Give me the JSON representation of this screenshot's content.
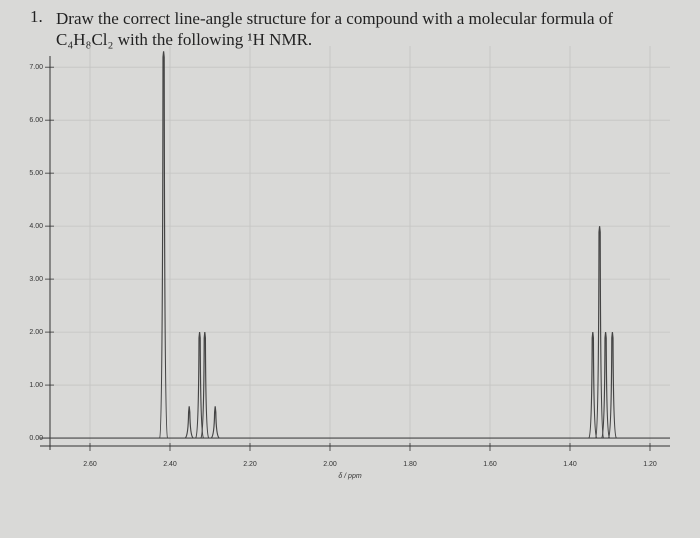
{
  "question": {
    "number": "1.",
    "line1": "Draw the correct line-angle structure for a compound with a molecular formula of",
    "line2": "C₄H₈Cl₂ with the following ¹H NMR."
  },
  "chart_data": {
    "type": "spectrum",
    "x_label": "δ / ppm",
    "color": "#444444",
    "grid": true,
    "x": [
      2.416,
      2.352,
      2.326,
      2.313,
      2.287,
      1.343,
      1.326,
      1.311,
      1.294
    ],
    "values": [
      7.3,
      0.6,
      2.0,
      2.0,
      0.6,
      2.0,
      4.0,
      2.0,
      2.0
    ],
    "xlim": [
      2.7,
      1.15
    ],
    "xticks": [
      {
        "value": 2.6,
        "label": "2.60"
      },
      {
        "value": 2.4,
        "label": "2.40"
      },
      {
        "value": 2.2,
        "label": "2.20"
      },
      {
        "value": 2.0,
        "label": "2.00"
      },
      {
        "value": 1.8,
        "label": "1.80"
      },
      {
        "value": 1.6,
        "label": "1.60"
      },
      {
        "value": 1.4,
        "label": "1.40"
      },
      {
        "value": 1.2,
        "label": "1.20"
      }
    ],
    "ylim": [
      -0.15,
      7.4
    ],
    "yticks": [
      {
        "value": 0,
        "label": "0.00"
      },
      {
        "value": 1,
        "label": "1.00"
      },
      {
        "value": 2,
        "label": "2.00"
      },
      {
        "value": 3,
        "label": "3.00"
      },
      {
        "value": 4,
        "label": "4.00"
      },
      {
        "value": 5,
        "label": "5.00"
      },
      {
        "value": 6,
        "label": "6.00"
      },
      {
        "value": 7,
        "label": "7.00"
      }
    ]
  }
}
